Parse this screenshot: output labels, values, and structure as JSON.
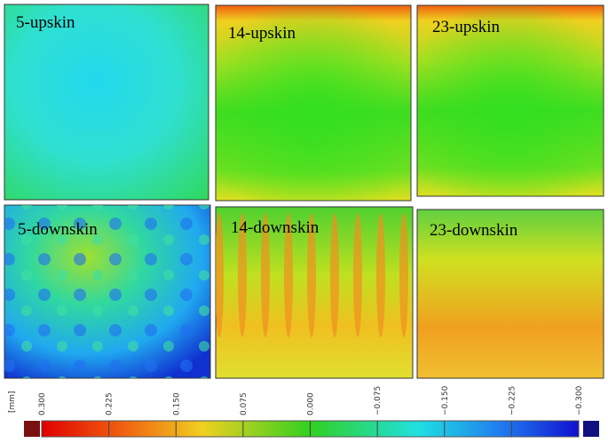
{
  "panels": [
    {
      "label": "5-upskin"
    },
    {
      "label": "14-upskin"
    },
    {
      "label": "23-upskin"
    },
    {
      "label": "5-downskin"
    },
    {
      "label": "14-downskin"
    },
    {
      "label": "23-downskin"
    }
  ],
  "colorbar": {
    "unit": "[mm]",
    "ticks": [
      {
        "value": 0.3,
        "label": "0.300"
      },
      {
        "value": 0.225,
        "label": "0.225"
      },
      {
        "value": 0.15,
        "label": "0.150"
      },
      {
        "value": 0.075,
        "label": "0.075"
      },
      {
        "value": 0,
        "label": "0.000"
      },
      {
        "value": -0.075,
        "label": "−0.075"
      },
      {
        "value": -0.15,
        "label": "−0.150"
      },
      {
        "value": -0.225,
        "label": "−0.225"
      },
      {
        "value": -0.3,
        "label": "−0.300"
      }
    ]
  }
}
